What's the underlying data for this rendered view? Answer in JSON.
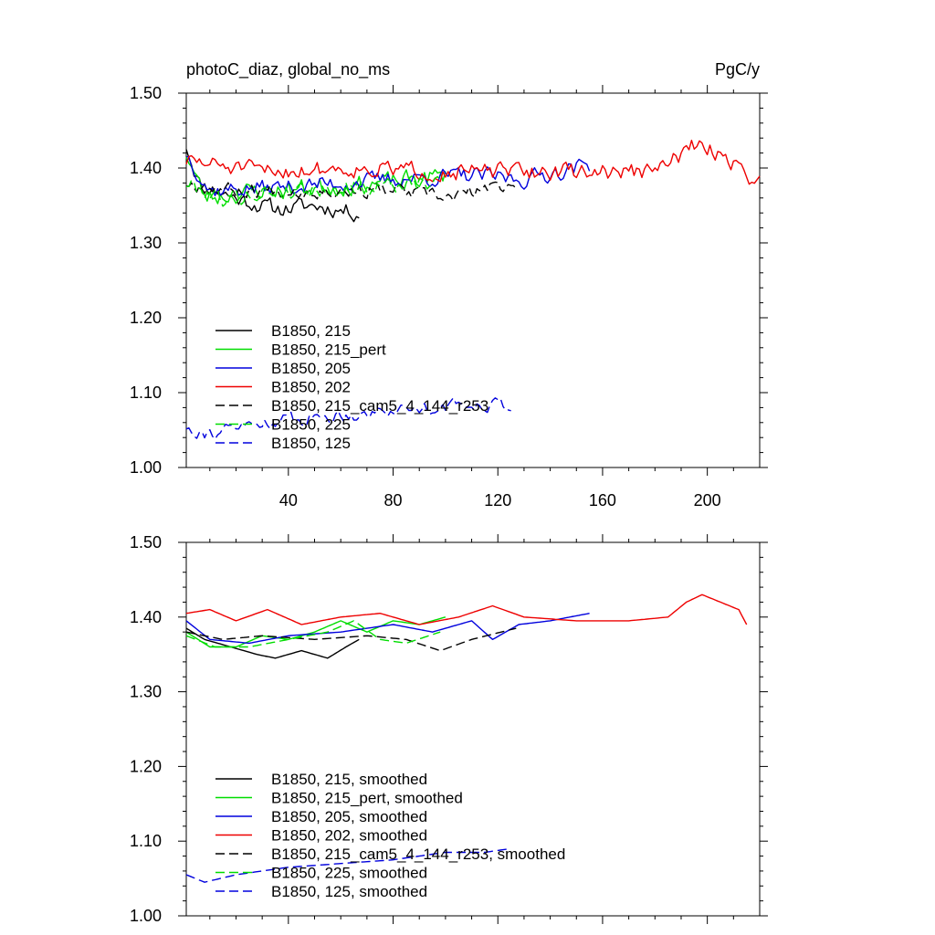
{
  "chart_data": [
    {
      "type": "line",
      "title_left": "photoC_diaz, global_no_ms",
      "title_right": "PgC/y",
      "xlim": [
        1,
        220
      ],
      "ylim": [
        1.0,
        1.5
      ],
      "x_ticks": [
        40,
        80,
        120,
        160,
        200
      ],
      "x_tick_labels": [
        "40",
        "80",
        "120",
        "160",
        "200"
      ],
      "y_ticks": [
        1.0,
        1.1,
        1.2,
        1.3,
        1.4,
        1.5
      ],
      "y_tick_labels": [
        "1.00",
        "1.10",
        "1.20",
        "1.30",
        "1.40",
        "1.50"
      ],
      "legend_position": "lower-left",
      "series": [
        {
          "name": "B1850, 215",
          "color": "#000000",
          "dash": "solid",
          "x_range": [
            1,
            67
          ],
          "base": 1.36,
          "start": 1.435,
          "noise": 0.018,
          "seed": 11,
          "trend": [
            [
              1,
              1.43
            ],
            [
              6,
              1.38
            ],
            [
              20,
              1.36
            ],
            [
              35,
              1.345
            ],
            [
              50,
              1.35
            ],
            [
              67,
              1.34
            ]
          ]
        },
        {
          "name": "B1850, 215_pert",
          "color": "#00dd00",
          "dash": "solid",
          "x_range": [
            1,
            100
          ],
          "base": 1.37,
          "start": 1.43,
          "noise": 0.02,
          "seed": 23,
          "trend": [
            [
              1,
              1.42
            ],
            [
              8,
              1.36
            ],
            [
              30,
              1.37
            ],
            [
              55,
              1.375
            ],
            [
              75,
              1.38
            ],
            [
              100,
              1.39
            ]
          ]
        },
        {
          "name": "B1850, 205",
          "color": "#0000dd",
          "dash": "solid",
          "x_range": [
            1,
            155
          ],
          "base": 1.38,
          "start": 1.43,
          "noise": 0.018,
          "seed": 37,
          "trend": [
            [
              1,
              1.42
            ],
            [
              10,
              1.37
            ],
            [
              40,
              1.375
            ],
            [
              80,
              1.385
            ],
            [
              110,
              1.39
            ],
            [
              130,
              1.385
            ],
            [
              155,
              1.405
            ]
          ]
        },
        {
          "name": "B1850, 202",
          "color": "#ee0000",
          "dash": "solid",
          "x_range": [
            1,
            220
          ],
          "base": 1.395,
          "start": 1.43,
          "noise": 0.018,
          "seed": 51,
          "trend": [
            [
              1,
              1.41
            ],
            [
              30,
              1.395
            ],
            [
              60,
              1.4
            ],
            [
              100,
              1.395
            ],
            [
              140,
              1.395
            ],
            [
              180,
              1.395
            ],
            [
              195,
              1.43
            ],
            [
              205,
              1.42
            ],
            [
              220,
              1.38
            ]
          ]
        },
        {
          "name": "B1850, 215_cam5_4_144_r253",
          "color": "#000000",
          "dash": "dash",
          "x_range": [
            1,
            127
          ],
          "base": 1.37,
          "start": 1.43,
          "noise": 0.015,
          "seed": 67,
          "trend": [
            [
              1,
              1.38
            ],
            [
              20,
              1.37
            ],
            [
              50,
              1.37
            ],
            [
              80,
              1.37
            ],
            [
              100,
              1.36
            ],
            [
              127,
              1.38
            ]
          ]
        },
        {
          "name": "B1850, 225",
          "color": "#00dd00",
          "dash": "dash",
          "x_range": [
            1,
            98
          ],
          "base": 1.37,
          "start": 1.42,
          "noise": 0.018,
          "seed": 79,
          "trend": [
            [
              1,
              1.38
            ],
            [
              15,
              1.36
            ],
            [
              40,
              1.37
            ],
            [
              70,
              1.375
            ],
            [
              98,
              1.38
            ]
          ]
        },
        {
          "name": "B1850, 125",
          "color": "#0000dd",
          "dash": "dash",
          "x_range": [
            1,
            125
          ],
          "base": 1.07,
          "start": 1.05,
          "noise": 0.014,
          "seed": 91,
          "trend": [
            [
              1,
              1.055
            ],
            [
              10,
              1.045
            ],
            [
              30,
              1.06
            ],
            [
              60,
              1.07
            ],
            [
              90,
              1.08
            ],
            [
              110,
              1.085
            ],
            [
              125,
              1.085
            ]
          ]
        }
      ]
    },
    {
      "type": "line",
      "xlim": [
        1,
        220
      ],
      "ylim": [
        1.0,
        1.5
      ],
      "x_ticks": [
        40,
        80,
        120,
        160,
        200
      ],
      "y_ticks": [
        1.0,
        1.1,
        1.2,
        1.3,
        1.4,
        1.5
      ],
      "y_tick_labels": [
        "1.00",
        "1.10",
        "1.20",
        "1.30",
        "1.40",
        "1.50"
      ],
      "legend_position": "lower-left",
      "series": [
        {
          "name": "B1850, 215, smoothed",
          "color": "#000000",
          "dash": "solid",
          "x_range": [
            1,
            67
          ],
          "trend": [
            [
              1,
              1.385
            ],
            [
              8,
              1.37
            ],
            [
              18,
              1.36
            ],
            [
              28,
              1.35
            ],
            [
              35,
              1.345
            ],
            [
              45,
              1.355
            ],
            [
              55,
              1.345
            ],
            [
              62,
              1.36
            ],
            [
              67,
              1.37
            ]
          ]
        },
        {
          "name": "B1850, 215_pert, smoothed",
          "color": "#00dd00",
          "dash": "solid",
          "x_range": [
            1,
            100
          ],
          "trend": [
            [
              1,
              1.38
            ],
            [
              10,
              1.36
            ],
            [
              20,
              1.36
            ],
            [
              30,
              1.375
            ],
            [
              40,
              1.37
            ],
            [
              50,
              1.38
            ],
            [
              60,
              1.395
            ],
            [
              70,
              1.38
            ],
            [
              80,
              1.395
            ],
            [
              90,
              1.39
            ],
            [
              100,
              1.4
            ]
          ]
        },
        {
          "name": "B1850, 205, smoothed",
          "color": "#0000dd",
          "dash": "solid",
          "x_range": [
            1,
            155
          ],
          "trend": [
            [
              1,
              1.395
            ],
            [
              10,
              1.37
            ],
            [
              25,
              1.365
            ],
            [
              40,
              1.375
            ],
            [
              60,
              1.38
            ],
            [
              80,
              1.39
            ],
            [
              95,
              1.38
            ],
            [
              110,
              1.395
            ],
            [
              118,
              1.37
            ],
            [
              128,
              1.39
            ],
            [
              140,
              1.395
            ],
            [
              155,
              1.405
            ]
          ]
        },
        {
          "name": "B1850, 202, smoothed",
          "color": "#ee0000",
          "dash": "solid",
          "x_range": [
            1,
            215
          ],
          "trend": [
            [
              1,
              1.405
            ],
            [
              10,
              1.41
            ],
            [
              20,
              1.395
            ],
            [
              32,
              1.41
            ],
            [
              45,
              1.39
            ],
            [
              60,
              1.4
            ],
            [
              75,
              1.405
            ],
            [
              90,
              1.39
            ],
            [
              105,
              1.4
            ],
            [
              118,
              1.415
            ],
            [
              130,
              1.4
            ],
            [
              150,
              1.395
            ],
            [
              170,
              1.395
            ],
            [
              185,
              1.4
            ],
            [
              192,
              1.42
            ],
            [
              198,
              1.43
            ],
            [
              205,
              1.42
            ],
            [
              212,
              1.41
            ],
            [
              215,
              1.39
            ]
          ]
        },
        {
          "name": "B1850, 215_cam5_4_144_r253, smoothed",
          "color": "#000000",
          "dash": "dash",
          "x_range": [
            1,
            127
          ],
          "trend": [
            [
              1,
              1.38
            ],
            [
              15,
              1.37
            ],
            [
              30,
              1.375
            ],
            [
              50,
              1.37
            ],
            [
              70,
              1.375
            ],
            [
              85,
              1.37
            ],
            [
              98,
              1.355
            ],
            [
              110,
              1.37
            ],
            [
              127,
              1.385
            ]
          ]
        },
        {
          "name": "B1850, 225, smoothed",
          "color": "#00dd00",
          "dash": "dash",
          "x_range": [
            1,
            98
          ],
          "trend": [
            [
              1,
              1.375
            ],
            [
              12,
              1.36
            ],
            [
              25,
              1.36
            ],
            [
              40,
              1.37
            ],
            [
              55,
              1.38
            ],
            [
              65,
              1.395
            ],
            [
              75,
              1.37
            ],
            [
              85,
              1.365
            ],
            [
              98,
              1.38
            ]
          ]
        },
        {
          "name": "B1850, 125, smoothed",
          "color": "#0000dd",
          "dash": "dash",
          "x_range": [
            1,
            125
          ],
          "trend": [
            [
              1,
              1.055
            ],
            [
              8,
              1.045
            ],
            [
              20,
              1.055
            ],
            [
              40,
              1.065
            ],
            [
              60,
              1.07
            ],
            [
              80,
              1.075
            ],
            [
              100,
              1.085
            ],
            [
              115,
              1.085
            ],
            [
              125,
              1.09
            ]
          ]
        }
      ]
    }
  ]
}
